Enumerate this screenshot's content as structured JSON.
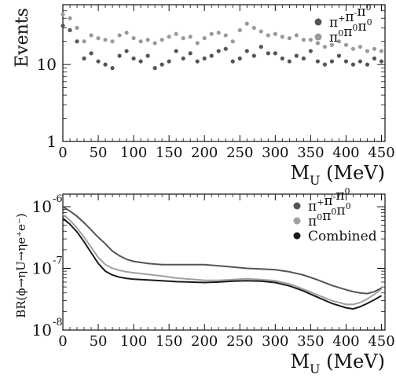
{
  "chart_data": [
    {
      "type": "scatter",
      "title": "",
      "xlabel": "M",
      "xlabel_sub": "U",
      "xlabel_unit": "(MeV)",
      "ylabel": "Events",
      "xlim": [
        0,
        455
      ],
      "ylim": [
        1,
        60
      ],
      "yscale": "log",
      "grid": false,
      "legend_position": "top-right",
      "x_ticks": [
        "0",
        "50",
        "100",
        "150",
        "200",
        "250",
        "300",
        "350",
        "400",
        "450"
      ],
      "y_ticks": [
        {
          "value": 1,
          "base": "1",
          "exp": ""
        },
        {
          "value": 10,
          "base": "10",
          "exp": ""
        },
        {
          "value": 100,
          "base": "10",
          "exp": "2"
        }
      ],
      "series": [
        {
          "name": "π+π-π0",
          "legend_base": "π",
          "legend_parts": [
            [
              "+",
              ""
            ],
            [
              "-",
              ""
            ],
            [
              "0",
              ""
            ]
          ],
          "color": "#555555",
          "x": [
            0,
            10,
            20,
            30,
            40,
            50,
            60,
            70,
            80,
            90,
            100,
            110,
            120,
            130,
            140,
            150,
            160,
            170,
            180,
            190,
            200,
            210,
            220,
            230,
            240,
            250,
            260,
            270,
            280,
            290,
            300,
            310,
            320,
            330,
            340,
            350,
            360,
            370,
            380,
            390,
            400,
            410,
            420,
            430,
            440,
            450
          ],
          "y": [
            32,
            28,
            20,
            12,
            14,
            11,
            10,
            9,
            13,
            15,
            12,
            11,
            13,
            9,
            10,
            11,
            15,
            12,
            14,
            11,
            12,
            13,
            15,
            16,
            11,
            12,
            15,
            13,
            17,
            14,
            14,
            12,
            11,
            13,
            12,
            15,
            11,
            10,
            11,
            13,
            11,
            10,
            11,
            10,
            12,
            11
          ]
        },
        {
          "name": "π0π0π0",
          "legend_base": "π",
          "legend_parts": [
            [
              "0",
              ""
            ],
            [
              "0",
              ""
            ],
            [
              "0",
              ""
            ]
          ],
          "color": "#9a9a9a",
          "x": [
            0,
            10,
            20,
            30,
            40,
            50,
            60,
            70,
            80,
            90,
            100,
            110,
            120,
            130,
            140,
            150,
            160,
            170,
            180,
            190,
            200,
            210,
            220,
            230,
            240,
            250,
            260,
            270,
            280,
            290,
            300,
            310,
            320,
            330,
            340,
            350,
            360,
            370,
            380,
            390,
            400,
            410,
            420,
            430,
            440,
            450
          ],
          "y": [
            45,
            40,
            30,
            20,
            24,
            22,
            21,
            20,
            24,
            26,
            22,
            20,
            21,
            19,
            21,
            23,
            25,
            22,
            23,
            19,
            22,
            25,
            26,
            24,
            20,
            28,
            34,
            30,
            27,
            24,
            25,
            23,
            22,
            24,
            21,
            21,
            19,
            17,
            18,
            20,
            18,
            16,
            17,
            15,
            16,
            15
          ]
        }
      ]
    },
    {
      "type": "line",
      "title": "",
      "xlabel": "M",
      "xlabel_sub": "U",
      "xlabel_unit": "(MeV)",
      "ylabel": "BR(ϕ→ηU→ηe⁺e⁻)",
      "xlim": [
        0,
        455
      ],
      "ylim": [
        1e-08,
        1.6e-06
      ],
      "yscale": "log",
      "grid": false,
      "legend_position": "top-right",
      "x_ticks": [
        "0",
        "50",
        "100",
        "150",
        "200",
        "250",
        "300",
        "350",
        "400",
        "450"
      ],
      "y_ticks": [
        {
          "value": 1e-08,
          "base": "10",
          "exp": "-8"
        },
        {
          "value": 1e-07,
          "base": "10",
          "exp": "-7"
        },
        {
          "value": 1e-06,
          "base": "10",
          "exp": "-6"
        }
      ],
      "series": [
        {
          "name": "π+π-π0",
          "legend_base": "π",
          "legend_parts": [
            [
              "+",
              ""
            ],
            [
              "-",
              ""
            ],
            [
              "0",
              ""
            ]
          ],
          "color": "#555555",
          "x": [
            0,
            10,
            20,
            30,
            40,
            50,
            60,
            70,
            80,
            90,
            100,
            120,
            140,
            160,
            180,
            200,
            220,
            240,
            260,
            280,
            300,
            320,
            340,
            360,
            380,
            400,
            410,
            420,
            430,
            440,
            450
          ],
          "y": [
            1e-06,
            8.5e-07,
            7e-07,
            5.5e-07,
            4.2e-07,
            3.2e-07,
            2.5e-07,
            1.9e-07,
            1.6e-07,
            1.4e-07,
            1.3e-07,
            1.2e-07,
            1.15e-07,
            1.15e-07,
            1.15e-07,
            1.15e-07,
            1.1e-07,
            1.05e-07,
            1e-07,
            9.8e-08,
            9.5e-08,
            8.8e-08,
            7.8e-08,
            6.5e-08,
            5.3e-08,
            4.5e-08,
            4.2e-08,
            4e-08,
            3.9e-08,
            4.2e-08,
            4.8e-08
          ]
        },
        {
          "name": "π0π0π0",
          "legend_base": "π",
          "legend_parts": [
            [
              "0",
              ""
            ],
            [
              "0",
              ""
            ],
            [
              "0",
              ""
            ]
          ],
          "color": "#a0a0a0",
          "x": [
            0,
            10,
            20,
            30,
            40,
            50,
            60,
            70,
            80,
            90,
            100,
            120,
            140,
            160,
            180,
            200,
            220,
            240,
            260,
            280,
            300,
            320,
            340,
            360,
            380,
            400,
            410,
            420,
            430,
            440,
            450
          ],
          "y": [
            7.5e-07,
            6e-07,
            4.5e-07,
            3.2e-07,
            2.2e-07,
            1.5e-07,
            1.15e-07,
            1e-07,
            9.3e-08,
            8.8e-08,
            8.5e-08,
            8e-08,
            7.5e-08,
            7e-08,
            6.7e-08,
            6.4e-08,
            6.4e-08,
            6.6e-08,
            6.8e-08,
            6.6e-08,
            6.3e-08,
            5.6e-08,
            4.6e-08,
            3.7e-08,
            3e-08,
            2.6e-08,
            2.6e-08,
            2.8e-08,
            3.2e-08,
            3.8e-08,
            4.6e-08
          ]
        },
        {
          "name": "Combined",
          "legend_base": "Combined",
          "legend_parts": [],
          "color": "#1a1a1a",
          "x": [
            0,
            10,
            20,
            30,
            40,
            50,
            60,
            70,
            80,
            90,
            100,
            120,
            140,
            160,
            180,
            200,
            220,
            240,
            260,
            280,
            300,
            320,
            340,
            360,
            380,
            400,
            410,
            420,
            430,
            440,
            450
          ],
          "y": [
            6.5e-07,
            5.2e-07,
            3.9e-07,
            2.7e-07,
            1.8e-07,
            1.2e-07,
            9e-08,
            7.8e-08,
            7.2e-08,
            6.9e-08,
            6.7e-08,
            6.5e-08,
            6.3e-08,
            6.1e-08,
            6e-08,
            5.9e-08,
            6e-08,
            6.2e-08,
            6.3e-08,
            6.2e-08,
            5.9e-08,
            5.2e-08,
            4.3e-08,
            3.4e-08,
            2.7e-08,
            2.3e-08,
            2.2e-08,
            2.4e-08,
            2.7e-08,
            3.1e-08,
            3.6e-08
          ]
        }
      ]
    }
  ]
}
